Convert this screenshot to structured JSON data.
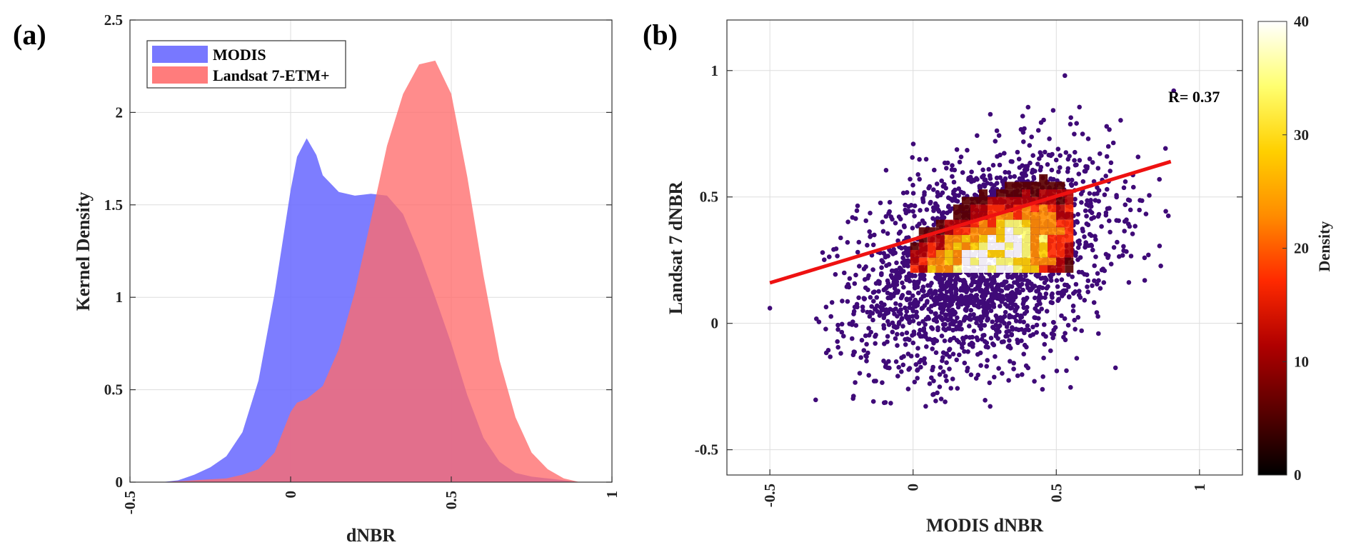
{
  "panels": {
    "a": "(a)",
    "b": "(b)"
  },
  "chart_data": [
    {
      "type": "area",
      "title": "",
      "xlabel": "dNBR",
      "ylabel": "Kernel Density",
      "xlim": [
        -0.5,
        1
      ],
      "ylim": [
        0,
        2.5
      ],
      "xticks": [
        "-0.5",
        "0",
        "0.5",
        "1"
      ],
      "yticks": [
        "0",
        "0.5",
        "1",
        "1.5",
        "2",
        "2.5"
      ],
      "grid": true,
      "legend_position": "top-left",
      "series": [
        {
          "name": "MODIS",
          "color": "#6b6bff",
          "x": [
            -0.4,
            -0.35,
            -0.3,
            -0.25,
            -0.2,
            -0.15,
            -0.1,
            -0.05,
            0,
            0.02,
            0.05,
            0.08,
            0.1,
            0.15,
            0.2,
            0.25,
            0.3,
            0.35,
            0.4,
            0.45,
            0.5,
            0.55,
            0.6,
            0.65,
            0.7,
            0.75,
            0.8,
            0.85,
            0.9
          ],
          "values": [
            0,
            0.01,
            0.04,
            0.08,
            0.14,
            0.27,
            0.55,
            1.02,
            1.58,
            1.76,
            1.86,
            1.77,
            1.66,
            1.57,
            1.55,
            1.56,
            1.55,
            1.45,
            1.24,
            1.0,
            0.75,
            0.47,
            0.24,
            0.11,
            0.05,
            0.03,
            0.02,
            0.01,
            0
          ]
        },
        {
          "name": "Landsat 7-ETM+",
          "color": "#ff6b6b",
          "x": [
            -0.4,
            -0.3,
            -0.2,
            -0.15,
            -0.1,
            -0.05,
            0,
            0.02,
            0.05,
            0.1,
            0.15,
            0.2,
            0.25,
            0.3,
            0.35,
            0.4,
            0.45,
            0.5,
            0.55,
            0.6,
            0.65,
            0.7,
            0.75,
            0.8,
            0.85,
            0.9
          ],
          "values": [
            0,
            0.01,
            0.02,
            0.04,
            0.07,
            0.16,
            0.38,
            0.43,
            0.45,
            0.52,
            0.72,
            1.03,
            1.42,
            1.82,
            2.1,
            2.26,
            2.28,
            2.1,
            1.65,
            1.12,
            0.66,
            0.35,
            0.16,
            0.07,
            0.02,
            0
          ]
        }
      ]
    },
    {
      "type": "scatter",
      "title": "",
      "xlabel": "MODIS dNBR",
      "ylabel": "Landsat 7 dNBR",
      "xlim": [
        -0.65,
        1.15
      ],
      "ylim": [
        -0.6,
        1.2
      ],
      "xticks": [
        "-0.5",
        "0",
        "0.5",
        "1"
      ],
      "yticks": [
        "-0.5",
        "0",
        "0.5",
        "1"
      ],
      "grid": true,
      "annotation": "R= 0.37",
      "point_color": "#3f0a78",
      "fit_line": {
        "color": "#ee1111",
        "x": [
          -0.5,
          0.9
        ],
        "y": [
          0.16,
          0.64
        ]
      },
      "density_colorbar": {
        "label": "Density",
        "range": [
          0,
          40
        ],
        "ticks": [
          "0",
          "10",
          "20",
          "30",
          "40"
        ],
        "colormap": [
          "#000000",
          "#5a0000",
          "#b00000",
          "#ff2a00",
          "#ff8c00",
          "#ffd000",
          "#ffff70",
          "#ffffff"
        ]
      }
    }
  ]
}
